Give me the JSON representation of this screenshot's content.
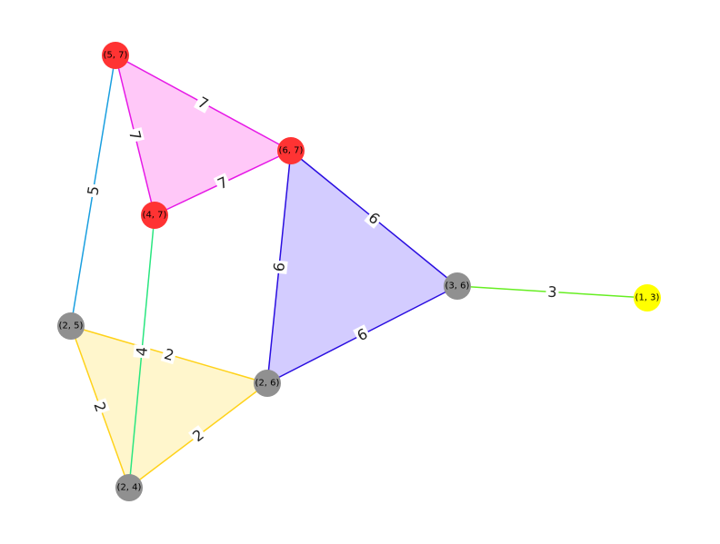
{
  "graph": {
    "nodes": [
      {
        "id": "n57",
        "label": "(5, 7)",
        "color": "#ff3333"
      },
      {
        "id": "n67",
        "label": "(6, 7)",
        "color": "#ff3333"
      },
      {
        "id": "n47",
        "label": "(4, 7)",
        "color": "#ff3333"
      },
      {
        "id": "n36",
        "label": "(3, 6)",
        "color": "#909090"
      },
      {
        "id": "n13",
        "label": "(1, 3)",
        "color": "#ffff00"
      },
      {
        "id": "n25",
        "label": "(2, 5)",
        "color": "#909090"
      },
      {
        "id": "n26",
        "label": "(2, 6)",
        "color": "#909090"
      },
      {
        "id": "n24",
        "label": "(2, 4)",
        "color": "#909090"
      }
    ],
    "triangles": [
      {
        "nodes": [
          "n57",
          "n67",
          "n47"
        ],
        "fill": "#ffc8f8"
      },
      {
        "nodes": [
          "n67",
          "n36",
          "n26"
        ],
        "fill": "#d3ccff"
      },
      {
        "nodes": [
          "n25",
          "n26",
          "n24"
        ],
        "fill": "#fff6cc"
      }
    ],
    "edges": [
      {
        "source": "n57",
        "target": "n67",
        "weight": "7",
        "color": "#e619e6"
      },
      {
        "source": "n57",
        "target": "n47",
        "weight": "7",
        "color": "#e619e6"
      },
      {
        "source": "n47",
        "target": "n67",
        "weight": "7",
        "color": "#e619e6"
      },
      {
        "source": "n57",
        "target": "n25",
        "weight": "5",
        "color": "#1a9fe0"
      },
      {
        "source": "n47",
        "target": "n24",
        "weight": "4",
        "color": "#29e680"
      },
      {
        "source": "n67",
        "target": "n36",
        "weight": "6",
        "color": "#2a0ee0"
      },
      {
        "source": "n67",
        "target": "n26",
        "weight": "6",
        "color": "#2a0ee0"
      },
      {
        "source": "n36",
        "target": "n26",
        "weight": "6",
        "color": "#2a0ee0"
      },
      {
        "source": "n36",
        "target": "n13",
        "weight": "3",
        "color": "#66ee22"
      },
      {
        "source": "n25",
        "target": "n26",
        "weight": "2",
        "color": "#ffd21a"
      },
      {
        "source": "n25",
        "target": "n24",
        "weight": "2",
        "color": "#ffd21a"
      },
      {
        "source": "n26",
        "target": "n24",
        "weight": "2",
        "color": "#ffd21a"
      }
    ]
  }
}
